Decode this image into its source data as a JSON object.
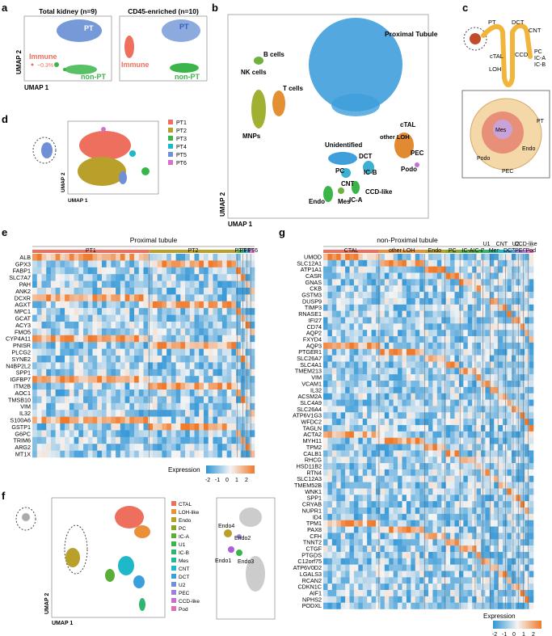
{
  "panels": {
    "a": "a",
    "b": "b",
    "c": "c",
    "d": "d",
    "e": "e",
    "f": "f",
    "g": "g"
  },
  "panel_a": {
    "left": {
      "title": "Total kidney (n=9)",
      "pt": "PT",
      "immune": "Immune",
      "immune_pct": "~0.3%",
      "nonpt": "non-PT"
    },
    "right": {
      "title": "CD45-enriched (n=10)",
      "pt": "PT",
      "immune": "Immune",
      "nonpt": "non-PT"
    },
    "xlabel": "UMAP 1",
    "ylabel": "UMAP 2"
  },
  "panel_b": {
    "labels": {
      "pt": "Proximal Tubule",
      "bcells": "B cells",
      "nk": "NK cells",
      "tcells": "T cells",
      "mnp": "MNPs",
      "unid": "Unidentified",
      "ctal": "cTAL",
      "otherloh": "other\nLOH",
      "dct": "DCT",
      "pec": "PEC",
      "podo": "Podo",
      "pc": "PC",
      "icb": "IC-B",
      "cnt": "CNT",
      "ica": "IC-A",
      "ccd": "CCD-like",
      "endo": "Endo",
      "mes": "Mes"
    },
    "xlabel": "UMAP 1",
    "ylabel": "UMAP 2"
  },
  "panel_c": {
    "pt": "PT",
    "dct": "DCT",
    "cnt": "CNT",
    "ctal": "cTAL",
    "loh": "LOH",
    "ccd": "CCD",
    "pc": "PC",
    "ica": "IC-A",
    "icb": "IC-B",
    "mes": "Mes",
    "pt2": "PT",
    "endo": "Endo",
    "podo": "Podo",
    "pec": "PEC"
  },
  "panel_d": {
    "legend": [
      "PT1",
      "PT2",
      "PT3",
      "PT4",
      "PT5",
      "PT6"
    ],
    "colors": [
      "#ef6f5e",
      "#b9a02a",
      "#3bb54a",
      "#1fb8c8",
      "#6f8fd6",
      "#d86fcf"
    ],
    "xlabel": "UMAP 1",
    "ylabel": "UMAP 2"
  },
  "panel_e": {
    "title": "Proximal tubule",
    "groups": [
      "PT1",
      "PT2",
      "PT3",
      "PT4",
      "PT5",
      "PT6"
    ],
    "genes": [
      "ALB",
      "GPX3",
      "FABP1",
      "SLC7A7",
      "PAH",
      "ANK2",
      "DCXR",
      "AGXT",
      "MPC1",
      "GCAT",
      "ACY3",
      "FMO5",
      "CYP4A11",
      "PNISR",
      "PLCG2",
      "SYNE2",
      "N4BP2L2",
      "SPP1",
      "IGFBP7",
      "ITM2B",
      "AOC1",
      "TMSB10",
      "VIM",
      "IL32",
      "S100A6",
      "GSTP1",
      "G6PC",
      "TRIM6",
      "ARG2",
      "MT1X"
    ],
    "legend_title": "Expression",
    "legend_ticks": [
      "-2",
      "-1",
      "0",
      "1",
      "2"
    ]
  },
  "panel_f": {
    "legend": [
      "CTAL",
      "LOH-like",
      "Endo",
      "PC",
      "IC-A",
      "U1",
      "IC-B",
      "Mes",
      "CNT",
      "DCT",
      "U2",
      "PEC",
      "CCD-like",
      "Pod"
    ],
    "colors": [
      "#ef6f5e",
      "#e8903a",
      "#b9a02a",
      "#8aa42a",
      "#5aae38",
      "#3bb54a",
      "#31b56e",
      "#2ab597",
      "#1fb8c8",
      "#3aa0dc",
      "#6f8fd6",
      "#9c7fd8",
      "#c46fd6",
      "#e06fb6"
    ],
    "endo": [
      "Endo4",
      "Endo2",
      "Endo1",
      "Endo3"
    ],
    "xlabel": "UMAP 1",
    "ylabel": "UMAP 2"
  },
  "panel_g": {
    "title": "non-Proximal tubule",
    "groups": [
      "CTAL",
      "other LOH",
      "Endo",
      "PC",
      "IC-A",
      "IC-B",
      "U1",
      "Mes",
      "CNT",
      "DCT",
      "U2",
      "PEC",
      "CCD-like",
      "Pod"
    ],
    "genes": [
      "UMOD",
      "SLC12A1",
      "ATP1A1",
      "CASR",
      "GNAS",
      "CKB",
      "GSTM3",
      "DUSP9",
      "TIMP3",
      "RNASE1",
      "IFI27",
      "CD74",
      "AQP2",
      "FXYD4",
      "AQP3",
      "PTGER1",
      "SLC26A7",
      "SLC4A1",
      "TMEM213",
      "VIM",
      "VCAM1",
      "IL32",
      "ACSM2A",
      "SLC4A9",
      "SLC26A4",
      "ATP6V1G3",
      "WFDC2",
      "TAGLN",
      "ACTA2",
      "MYH11",
      "TPM2",
      "CALB1",
      "RHCG",
      "HSD11B2",
      "RTN4",
      "SLC12A3",
      "TMEM52B",
      "WNK1",
      "SPP1",
      "CRYAB",
      "NUPR1",
      "ID4",
      "TPM1",
      "PAX8",
      "CFH",
      "TNNT2",
      "CTGF",
      "PTGDS",
      "C12orf75",
      "ATP6V0D2",
      "LGALS3",
      "RCAN2",
      "CDKN1C",
      "AIF1",
      "NPHS2",
      "PODXL"
    ],
    "legend_title": "Expression",
    "legend_ticks": [
      "-2",
      "-1",
      "0",
      "1",
      "2"
    ]
  }
}
